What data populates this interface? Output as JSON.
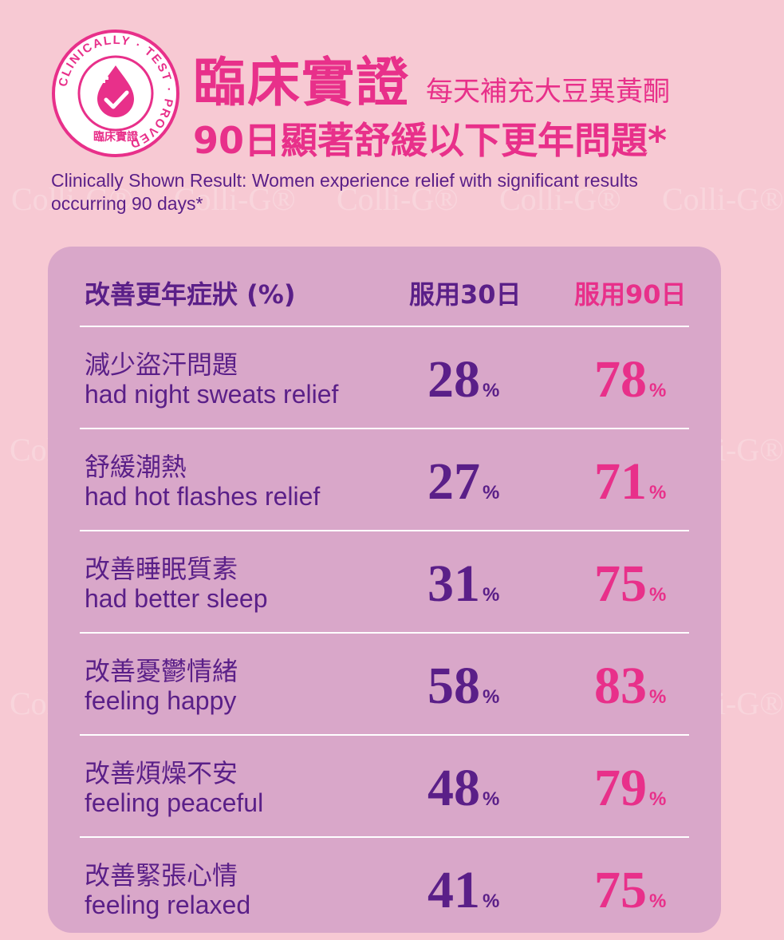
{
  "colors": {
    "accent_pink": "#e8308a",
    "purple": "#5a1f88",
    "background": "#f7c9d3",
    "panel": "#d9a7c9"
  },
  "watermark": "Colli-G®",
  "badge": {
    "ring_text": "CLINICALLY · TEST · PROVED",
    "center_label": "臨床實證",
    "icon": "drop-check-icon"
  },
  "header": {
    "title": "臨床實證",
    "title_suffix": "每天補充大豆異黃酮",
    "title_line2": "90日顯著舒緩以下更年問題*",
    "subtitle": "Clinically Shown Result: Women experience relief with significant results occurring 90 days*"
  },
  "table": {
    "col_label": "改善更年症狀 (%)",
    "col_30": "服用30日",
    "col_90": "服用90日",
    "percent_sign": "%",
    "rows": [
      {
        "zh": "減少盜汗問題",
        "en": "had night sweats relief",
        "v30": "28",
        "v90": "78"
      },
      {
        "zh": "舒緩潮熱",
        "en": "had hot flashes relief",
        "v30": "27",
        "v90": "71"
      },
      {
        "zh": "改善睡眠質素",
        "en": "had better sleep",
        "v30": "31",
        "v90": "75"
      },
      {
        "zh": "改善憂鬱情緒",
        "en": "feeling happy",
        "v30": "58",
        "v90": "83"
      },
      {
        "zh": "改善煩燥不安",
        "en": "feeling peaceful",
        "v30": "48",
        "v90": "79"
      },
      {
        "zh": "改善緊張心情",
        "en": "feeling relaxed",
        "v30": "41",
        "v90": "75"
      }
    ]
  }
}
